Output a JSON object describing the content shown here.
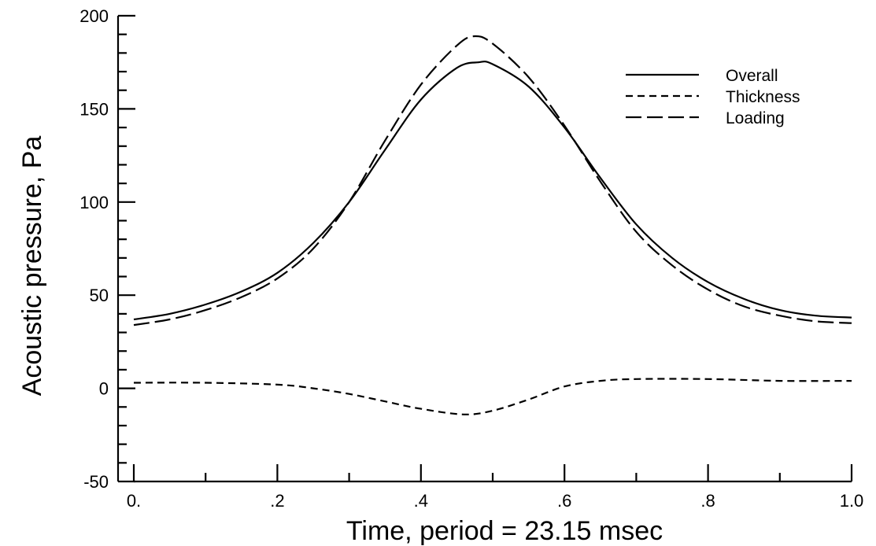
{
  "chart_data": {
    "type": "line",
    "xlabel": "Time, period = 23.15 msec",
    "ylabel": "Acoustic pressure, Pa",
    "xlim": [
      0,
      1.0
    ],
    "ylim": [
      -50,
      200
    ],
    "x_ticks": [
      0,
      0.2,
      0.4,
      0.6,
      0.8,
      1.0
    ],
    "x_tick_labels": [
      "0.",
      ".2",
      ".4",
      ".6",
      ".8",
      "1.0"
    ],
    "x_minor_step": 0.1,
    "y_ticks": [
      -50,
      0,
      50,
      100,
      150,
      200
    ],
    "y_tick_labels": [
      "-50",
      "0",
      "50",
      "100",
      "150",
      "200"
    ],
    "y_minor_step": 10,
    "grid": false,
    "legend_position": "top-right",
    "series": [
      {
        "name": "Overall",
        "dash": "solid",
        "x": [
          0,
          0.05,
          0.1,
          0.15,
          0.2,
          0.25,
          0.3,
          0.35,
          0.4,
          0.45,
          0.48,
          0.5,
          0.55,
          0.6,
          0.65,
          0.7,
          0.75,
          0.8,
          0.85,
          0.9,
          0.95,
          1.0
        ],
        "y": [
          37,
          40,
          45,
          52,
          62,
          78,
          100,
          128,
          155,
          172,
          175,
          174,
          162,
          140,
          113,
          88,
          70,
          57,
          48,
          42,
          39,
          38
        ]
      },
      {
        "name": "Thickness",
        "dash": "dashed",
        "x": [
          0,
          0.1,
          0.2,
          0.25,
          0.3,
          0.35,
          0.4,
          0.46,
          0.5,
          0.55,
          0.6,
          0.65,
          0.7,
          0.8,
          0.9,
          1.0
        ],
        "y": [
          3,
          3,
          2,
          0,
          -3,
          -7,
          -11,
          -14,
          -12,
          -6,
          1,
          4,
          5,
          5,
          4,
          4
        ]
      },
      {
        "name": "Loading",
        "dash": "long-dashed",
        "x": [
          0,
          0.05,
          0.1,
          0.15,
          0.2,
          0.25,
          0.3,
          0.35,
          0.4,
          0.45,
          0.475,
          0.5,
          0.55,
          0.6,
          0.65,
          0.7,
          0.75,
          0.8,
          0.85,
          0.9,
          0.95,
          1.0
        ],
        "y": [
          34,
          37,
          42,
          49,
          59,
          75,
          100,
          133,
          163,
          184,
          189,
          185,
          167,
          141,
          111,
          84,
          66,
          53,
          44,
          39,
          36,
          35
        ]
      }
    ]
  }
}
